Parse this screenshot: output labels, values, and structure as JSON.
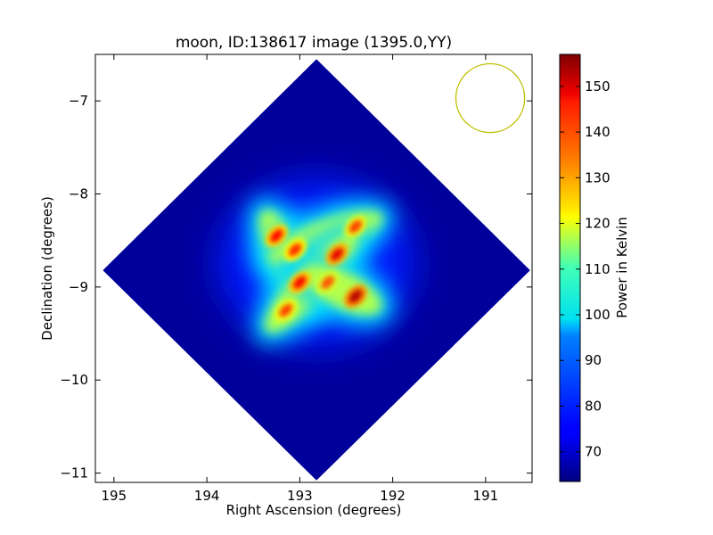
{
  "chart_data": {
    "type": "heatmap",
    "title": "moon, ID:138617 image (1395.0,YY)",
    "xlabel": "Right Ascension (degrees)",
    "ylabel": "Declination (degrees)",
    "xlim": [
      195.2,
      190.5
    ],
    "ylim": [
      -11.1,
      -6.5
    ],
    "x_ticks": [
      195,
      194,
      193,
      192,
      191
    ],
    "y_ticks": [
      -7,
      -8,
      -9,
      -10,
      -11
    ],
    "x_tick_labels": [
      "195",
      "194",
      "193",
      "192",
      "191"
    ],
    "y_tick_labels": [
      "−7",
      "−8",
      "−9",
      "−10",
      "−11"
    ],
    "colorbar": {
      "label": "Power in Kelvin",
      "range": [
        63.5,
        157
      ],
      "ticks": [
        70,
        80,
        90,
        100,
        110,
        120,
        130,
        140,
        150
      ],
      "tick_labels": [
        "70",
        "80",
        "90",
        "100",
        "110",
        "120",
        "130",
        "140",
        "150"
      ],
      "colormap": "jet"
    },
    "image_footprint": {
      "shape": "diamond",
      "center": [
        192.82,
        -8.82
      ],
      "corners": [
        [
          192.82,
          -6.55
        ],
        [
          190.52,
          -8.82
        ],
        [
          192.82,
          -11.08
        ],
        [
          195.12,
          -8.82
        ]
      ],
      "background_value": 66
    },
    "features": {
      "beam_circle": {
        "center": [
          190.95,
          -6.97
        ],
        "radius_deg": 0.37,
        "color": "#bfbf00"
      },
      "hotspots": [
        {
          "ra": 193.25,
          "dec": -8.45,
          "value": 145
        },
        {
          "ra": 192.4,
          "dec": -8.35,
          "value": 140
        },
        {
          "ra": 192.6,
          "dec": -8.65,
          "value": 148
        },
        {
          "ra": 193.05,
          "dec": -8.6,
          "value": 142
        },
        {
          "ra": 193.0,
          "dec": -8.95,
          "value": 146
        },
        {
          "ra": 192.7,
          "dec": -8.95,
          "value": 138
        },
        {
          "ra": 192.4,
          "dec": -9.1,
          "value": 152
        },
        {
          "ra": 193.15,
          "dec": -9.25,
          "value": 140
        }
      ]
    },
    "grid": false,
    "legend": "none"
  }
}
